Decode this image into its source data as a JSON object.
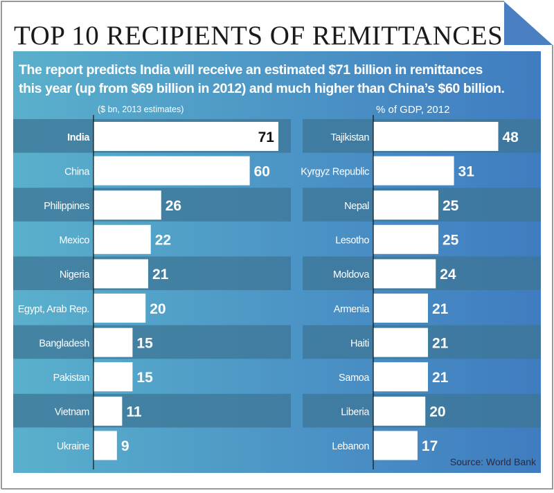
{
  "title": "TOP 10 RECIPIENTS OF REMITTANCES",
  "subtitle_lines": [
    "The report predicts India will receive an estimated $71 billion in remittances",
    "this year (up from $69 billion in 2012) and much higher than China’s $60 billion."
  ],
  "source": "Source: World Bank",
  "colors": {
    "panel_left": "#5ab0cc",
    "panel_right": "#3f7cc0",
    "stripe": "#3e7595",
    "bar": "#ffffff",
    "fold": "#4a7fc1"
  },
  "chart_data": [
    {
      "type": "bar",
      "orientation": "horizontal",
      "unit_label": "($ bn, 2013 estimates)",
      "categories": [
        "India",
        "China",
        "Philippines",
        "Mexico",
        "Nigeria",
        "Egypt, Arab Rep.",
        "Bangladesh",
        "Pakistan",
        "Vietnam",
        "Ukraine"
      ],
      "values": [
        71,
        60,
        26,
        22,
        21,
        20,
        15,
        15,
        11,
        9
      ],
      "highlight": "India"
    },
    {
      "type": "bar",
      "orientation": "horizontal",
      "unit_label": "% of GDP, 2012",
      "categories": [
        "Tajikistan",
        "Kyrgyz Republic",
        "Nepal",
        "Lesotho",
        "Moldova",
        "Armenia",
        "Haiti",
        "Samoa",
        "Liberia",
        "Lebanon"
      ],
      "values": [
        48,
        31,
        25,
        25,
        24,
        21,
        21,
        21,
        20,
        17
      ]
    }
  ]
}
